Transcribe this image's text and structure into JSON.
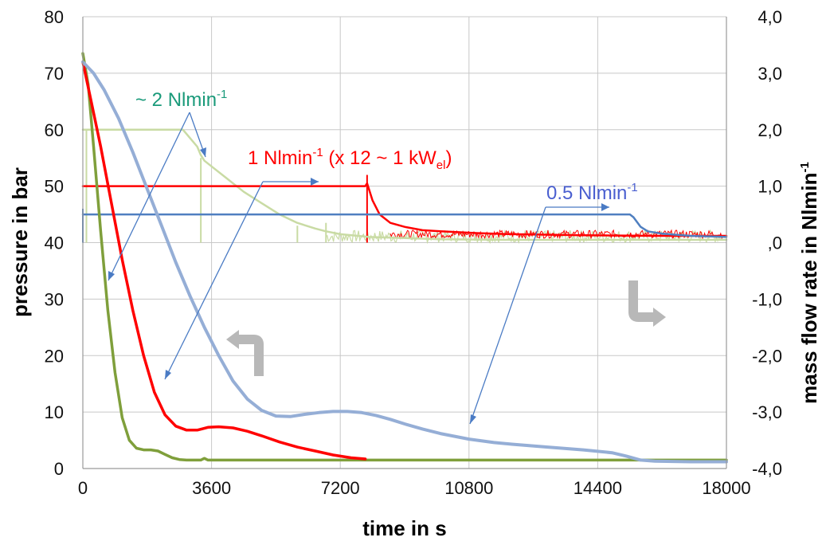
{
  "chart_data": {
    "type": "line",
    "xlabel": "time in s",
    "ylabel": "pressure in bar",
    "y2label": "mass flow rate in Nlmin",
    "y2label_sup": "-1",
    "xlim": [
      0,
      18000
    ],
    "ylim": [
      0,
      80
    ],
    "y2lim": [
      -4.0,
      4.0
    ],
    "x_ticks": [
      0,
      3600,
      7200,
      10800,
      14400,
      18000
    ],
    "x_tick_labels": [
      "0",
      "3600",
      "7200",
      "10800",
      "14400",
      "18000"
    ],
    "y_ticks": [
      0,
      10,
      20,
      30,
      40,
      50,
      60,
      70,
      80
    ],
    "y_tick_labels": [
      "0",
      "10",
      "20",
      "30",
      "40",
      "50",
      "60",
      "70",
      "80"
    ],
    "y2_ticks": [
      -4.0,
      -3.0,
      -2.0,
      -1.0,
      0.0,
      1.0,
      2.0,
      3.0,
      4.0
    ],
    "y2_tick_labels": [
      "-4,0",
      "-3,0",
      "-2,0",
      "-1,0",
      ",0",
      "1,0",
      "2,0",
      "3,0",
      "4,0"
    ],
    "grid": true,
    "legend": "none",
    "series": [
      {
        "axis": "left",
        "color": "#7f9f3b",
        "width": 3.5,
        "x": [
          0,
          150,
          300,
          500,
          700,
          900,
          1100,
          1300,
          1500,
          1700,
          1900,
          2100,
          2300,
          2500,
          2700,
          2900,
          3300,
          3400,
          3500,
          5000,
          8000,
          12000,
          15000,
          18000
        ],
        "y": [
          73.5,
          68,
          57,
          42,
          28,
          17,
          9,
          5,
          3.6,
          3.3,
          3.3,
          3.1,
          2.5,
          1.9,
          1.6,
          1.5,
          1.5,
          1.8,
          1.5,
          1.5,
          1.5,
          1.5,
          1.5,
          1.5
        ]
      },
      {
        "axis": "left",
        "color": "#ff0000",
        "width": 3.5,
        "x": [
          0,
          200,
          500,
          800,
          1100,
          1400,
          1700,
          2000,
          2300,
          2600,
          2900,
          3200,
          3500,
          3800,
          4200,
          4600,
          5000,
          5500,
          6000,
          6500,
          7000,
          7500,
          7900
        ],
        "y": [
          72,
          66,
          57,
          47,
          37,
          28,
          20,
          13.5,
          9.5,
          7.5,
          6.8,
          6.8,
          7.3,
          7.4,
          7.2,
          6.6,
          5.8,
          4.7,
          3.8,
          3.1,
          2.4,
          1.9,
          1.7
        ]
      },
      {
        "axis": "left",
        "color": "#95aed6",
        "width": 4,
        "x": [
          0,
          300,
          600,
          1000,
          1400,
          1800,
          2200,
          2600,
          3000,
          3400,
          3800,
          4200,
          4600,
          5000,
          5400,
          5800,
          6200,
          6600,
          7000,
          7400,
          7800,
          8200,
          8600,
          9000,
          9500,
          10000,
          10800,
          11500,
          12000,
          13000,
          14000,
          14800,
          15200,
          15600,
          16000,
          17000,
          18000
        ],
        "y": [
          72,
          70,
          67,
          62,
          56,
          49.5,
          43,
          36.5,
          30.5,
          25,
          20,
          15.5,
          12.3,
          10.3,
          9.3,
          9.2,
          9.6,
          9.9,
          10.1,
          10.1,
          9.9,
          9.4,
          8.7,
          7.9,
          7.0,
          6.2,
          5.2,
          4.6,
          4.3,
          3.8,
          3.3,
          2.8,
          2.2,
          1.5,
          1.3,
          1.2,
          1.2
        ]
      },
      {
        "axis": "right",
        "color": "#c9dba4",
        "width": 2.5,
        "x": [
          0,
          1000,
          2000,
          2800,
          3000,
          3200,
          3300,
          3400,
          3600,
          4000,
          4500,
          5000,
          5500,
          6000,
          6500,
          6800,
          7200,
          8000,
          9000,
          10000,
          12000,
          14000,
          16000,
          18000
        ],
        "y": [
          2.0,
          2.0,
          2.0,
          2.0,
          1.85,
          1.7,
          1.55,
          1.45,
          1.35,
          1.15,
          0.9,
          0.7,
          0.5,
          0.35,
          0.25,
          0.2,
          0.15,
          0.1,
          0.08,
          0.06,
          0.05,
          0.05,
          0.05,
          0.05
        ]
      },
      {
        "axis": "right",
        "color": "#ff0000",
        "width": 2.5,
        "x": [
          0,
          7900,
          7950,
          8100,
          8300,
          8600,
          9000,
          9500,
          10000,
          11000,
          12000,
          14000,
          16000,
          18000
        ],
        "y": [
          1.0,
          1.0,
          1.05,
          0.75,
          0.5,
          0.35,
          0.28,
          0.22,
          0.2,
          0.17,
          0.15,
          0.13,
          0.12,
          0.12
        ]
      },
      {
        "axis": "right",
        "color": "#4f7fc0",
        "width": 2.5,
        "x": [
          0,
          15300,
          15400,
          15600,
          15800,
          16200,
          17000,
          18000
        ],
        "y": [
          0.5,
          0.5,
          0.45,
          0.28,
          0.2,
          0.16,
          0.12,
          0.1
        ]
      }
    ],
    "annotations": [
      {
        "text": "~ 2 Nlmin",
        "sup": "-1",
        "color": "#1a9a7a"
      },
      {
        "text": "1 Nlmin",
        "sup": "-1",
        "text2": " (x  12 ~ 1 kW",
        "sub2": "el",
        "text3": ")",
        "color": "#ff0000"
      },
      {
        "text": "0.5 Nlmin",
        "sup": "-1",
        "color": "#4a5fd0"
      }
    ]
  }
}
